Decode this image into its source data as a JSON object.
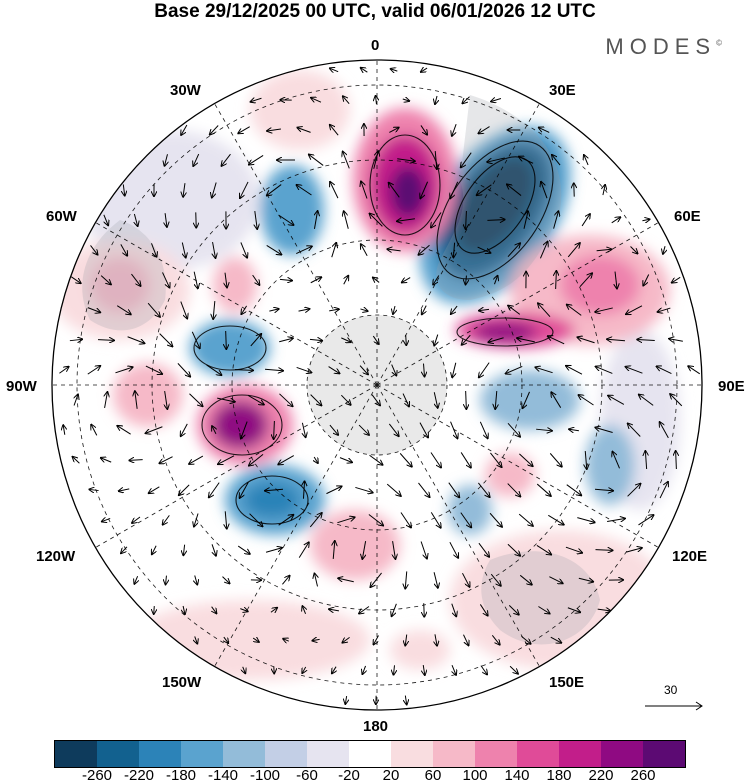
{
  "title": "Base 29/12/2025 00 UTC, valid 06/01/2026 12 UTC",
  "brand": "MODES",
  "brand_mark": "©",
  "longitude_labels": {
    "lon_0": "0",
    "lon_30e": "30E",
    "lon_60e": "60E",
    "lon_90e": "90E",
    "lon_120e": "120E",
    "lon_150e": "150E",
    "lon_180": "180",
    "lon_150w": "150W",
    "lon_120w": "120W",
    "lon_90w": "90W",
    "lon_60w": "60W",
    "lon_30w": "30W"
  },
  "reference_vector": {
    "value": "30"
  },
  "colorbar": {
    "colors": [
      "#0e3b5c",
      "#12618f",
      "#2c83b8",
      "#5aa3cf",
      "#93bcd9",
      "#c3cfe6",
      "#e6e4f0",
      "#ffffff",
      "#f9dde0",
      "#f6b9c8",
      "#ee82ad",
      "#e04b98",
      "#c21e8a",
      "#8f0a82",
      "#5c0a73"
    ],
    "ticks": [
      "-260",
      "-220",
      "-180",
      "-140",
      "-100",
      "-60",
      "-20",
      "20",
      "60",
      "100",
      "140",
      "180",
      "220",
      "260"
    ]
  },
  "anomaly_centers": [
    {
      "name": "neg-30e-60e",
      "value": -260,
      "color": "#0e3b5c"
    },
    {
      "name": "pos-0",
      "value": 240,
      "color": "#8f0a82"
    },
    {
      "name": "pos-60e",
      "value": 180,
      "color": "#c21e8a"
    },
    {
      "name": "pos-50e-70e",
      "value": 140,
      "color": "#ee82ad"
    },
    {
      "name": "pos-90w",
      "value": 200,
      "color": "#c21e8a"
    },
    {
      "name": "neg-110w",
      "value": -180,
      "color": "#2c83b8"
    },
    {
      "name": "neg-75w",
      "value": -140,
      "color": "#5aa3cf"
    },
    {
      "name": "neg-30w",
      "value": -140,
      "color": "#5aa3cf"
    },
    {
      "name": "pos-45w",
      "value": 100,
      "color": "#f6b9c8"
    },
    {
      "name": "pos-100w",
      "value": 100,
      "color": "#f6b9c8"
    },
    {
      "name": "neg-90e",
      "value": -100,
      "color": "#93bcd9"
    },
    {
      "name": "neg-120e",
      "value": -100,
      "color": "#93bcd9"
    },
    {
      "name": "pos-130e",
      "value": 100,
      "color": "#f6b9c8"
    },
    {
      "name": "neg-140e",
      "value": -100,
      "color": "#93bcd9"
    },
    {
      "name": "pos-170w",
      "value": 60,
      "color": "#f9dde0"
    },
    {
      "name": "pos-145e",
      "value": 60,
      "color": "#f9dde0"
    },
    {
      "name": "pos-60w",
      "value": 60,
      "color": "#f9dde0"
    }
  ]
}
